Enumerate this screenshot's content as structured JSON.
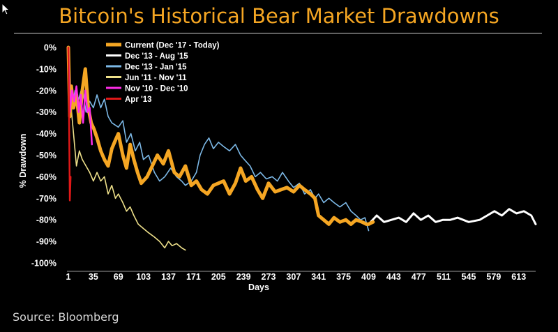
{
  "source_text": "Source: Bloomberg",
  "colors": {
    "background": "#000000",
    "title": "#f5a623",
    "axis_text": "#ffffff",
    "current": "#f5a623",
    "dec13_aug15": "#ffffff",
    "dec13_jan15": "#7cb8e6",
    "jun11_nov11": "#eee08a",
    "nov10_dec10": "#ff2de8",
    "apr13": "#e01818"
  },
  "chart_data": {
    "type": "line",
    "title": "Bitcoin's Historical Bear Market Drawdowns",
    "xlabel": "Days",
    "ylabel": "% Drawdown",
    "xlim": [
      1,
      636
    ],
    "ylim": [
      -100,
      0
    ],
    "x_ticks": [
      1,
      35,
      69,
      103,
      137,
      171,
      205,
      239,
      273,
      307,
      341,
      375,
      409,
      443,
      477,
      511,
      545,
      579,
      613
    ],
    "y_ticks": [
      0,
      -10,
      -20,
      -30,
      -40,
      -50,
      -60,
      -70,
      -80,
      -90,
      -100
    ],
    "y_tick_labels": [
      "0%",
      "-10%",
      "-20%",
      "-30%",
      "-40%",
      "-50%",
      "-60%",
      "-70%",
      "-80%",
      "-90%",
      "-100%"
    ],
    "legend_position": "top-left",
    "series": [
      {
        "name": "Current (Dec '17 - Today)",
        "color_key": "current",
        "x": [
          1,
          3,
          5,
          8,
          12,
          16,
          20,
          24,
          28,
          32,
          36,
          40,
          45,
          50,
          55,
          60,
          65,
          69,
          75,
          80,
          85,
          90,
          95,
          100,
          108,
          115,
          122,
          130,
          137,
          145,
          152,
          160,
          168,
          175,
          182,
          190,
          198,
          205,
          212,
          220,
          228,
          235,
          242,
          250,
          258,
          265,
          273,
          282,
          290,
          298,
          307,
          315,
          322,
          330,
          336,
          341,
          348,
          355,
          362,
          370,
          378,
          385,
          392,
          400,
          406,
          409,
          415
        ],
        "values": [
          0,
          -32,
          -18,
          -28,
          -22,
          -35,
          -20,
          -10,
          -28,
          -35,
          -38,
          -42,
          -48,
          -52,
          -55,
          -47,
          -43,
          -40,
          -50,
          -56,
          -45,
          -52,
          -58,
          -63,
          -60,
          -55,
          -50,
          -54,
          -48,
          -58,
          -60,
          -55,
          -64,
          -62,
          -66,
          -68,
          -64,
          -63,
          -62,
          -68,
          -63,
          -56,
          -62,
          -60,
          -66,
          -70,
          -63,
          -67,
          -66,
          -65,
          -67,
          -64,
          -66,
          -68,
          -70,
          -78,
          -80,
          -82,
          -79,
          -81,
          -80,
          -82,
          -80,
          -81,
          -82,
          -82,
          -81
        ]
      },
      {
        "name": "Dec '13 - Aug '15",
        "color_key": "dec13_aug15",
        "x": [
          409,
          420,
          430,
          440,
          450,
          460,
          470,
          480,
          490,
          500,
          510,
          520,
          530,
          545,
          560,
          570,
          580,
          590,
          600,
          610,
          620,
          630,
          636
        ],
        "values": [
          -82,
          -78,
          -81,
          -80,
          -79,
          -81,
          -77,
          -80,
          -78,
          -81,
          -80,
          -80,
          -79,
          -81,
          -80,
          -78,
          -76,
          -78,
          -75,
          -77,
          -76,
          -78,
          -82
        ]
      },
      {
        "name": "Dec '13 - Jan '15",
        "color_key": "dec13_jan15",
        "x": [
          1,
          5,
          10,
          15,
          20,
          25,
          30,
          35,
          40,
          45,
          50,
          55,
          60,
          69,
          75,
          80,
          86,
          92,
          98,
          103,
          110,
          118,
          125,
          132,
          140,
          148,
          155,
          160,
          168,
          175,
          180,
          186,
          192,
          198,
          205,
          212,
          220,
          228,
          235,
          240,
          248,
          255,
          262,
          270,
          278,
          285,
          292,
          300,
          307,
          315,
          322,
          330,
          336,
          341,
          348,
          355,
          362,
          370,
          378,
          385,
          392,
          398,
          404,
          409
        ],
        "values": [
          0,
          -30,
          -20,
          -24,
          -18,
          -30,
          -25,
          -28,
          -22,
          -28,
          -24,
          -32,
          -35,
          -37,
          -34,
          -44,
          -40,
          -48,
          -44,
          -52,
          -50,
          -58,
          -62,
          -60,
          -56,
          -60,
          -62,
          -64,
          -62,
          -58,
          -50,
          -45,
          -42,
          -47,
          -44,
          -46,
          -48,
          -45,
          -50,
          -52,
          -55,
          -60,
          -58,
          -61,
          -60,
          -62,
          -58,
          -62,
          -65,
          -63,
          -68,
          -66,
          -70,
          -68,
          -72,
          -70,
          -72,
          -74,
          -72,
          -76,
          -78,
          -80,
          -79,
          -85
        ]
      },
      {
        "name": "Jun '11 - Nov '11",
        "color_key": "jun11_nov11",
        "x": [
          1,
          4,
          8,
          12,
          16,
          20,
          25,
          30,
          35,
          40,
          45,
          50,
          55,
          60,
          65,
          69,
          75,
          80,
          85,
          90,
          96,
          103,
          110,
          118,
          125,
          132,
          137,
          142,
          148,
          155,
          160
        ],
        "values": [
          0,
          -25,
          -40,
          -55,
          -48,
          -52,
          -55,
          -58,
          -62,
          -58,
          -62,
          -60,
          -68,
          -64,
          -70,
          -68,
          -72,
          -76,
          -74,
          -78,
          -82,
          -84,
          -86,
          -88,
          -90,
          -93,
          -90,
          -92,
          -91,
          -93,
          -94
        ]
      },
      {
        "name": "Nov '10 - Dec '10",
        "color_key": "nov10_dec10",
        "x": [
          1,
          3,
          6,
          9,
          12,
          15,
          18,
          21,
          24,
          27,
          30,
          33
        ],
        "values": [
          0,
          -30,
          -20,
          -25,
          -18,
          -30,
          -22,
          -35,
          -20,
          -30,
          -28,
          -45
        ]
      },
      {
        "name": "Apr '13",
        "color_key": "apr13",
        "x": [
          1,
          2,
          3,
          4
        ],
        "values": [
          0,
          -35,
          -71,
          -60
        ]
      }
    ]
  }
}
